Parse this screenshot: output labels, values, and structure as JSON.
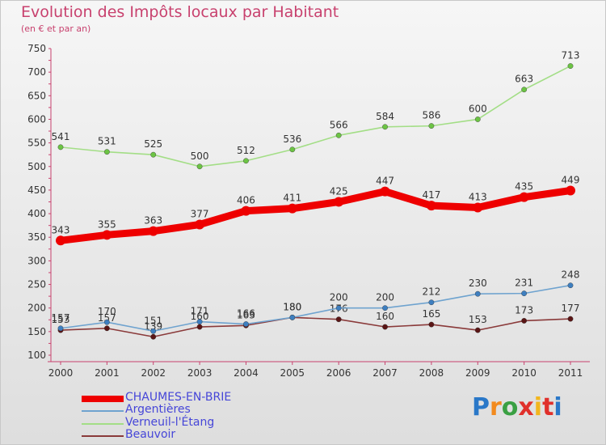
{
  "header": {
    "title": "Evolution des Impôts locaux par Habitant",
    "subtitle": "(en € et par an)"
  },
  "logo": {
    "text": "Proxiti"
  },
  "chart_data": {
    "type": "line",
    "title": "Evolution des Impôts locaux par Habitant",
    "subtitle": "(en € et par an)",
    "x": [
      2000,
      2001,
      2002,
      2003,
      2004,
      2005,
      2006,
      2007,
      2008,
      2009,
      2010,
      2011
    ],
    "ylim": [
      100,
      750
    ],
    "yticks": [
      100,
      150,
      200,
      250,
      300,
      350,
      400,
      450,
      500,
      550,
      600,
      650,
      700,
      750
    ],
    "grid": false,
    "legend_position": "bottom-left",
    "series": [
      {
        "name": "CHAUMES-EN-BRIE",
        "color": "#ee0000",
        "marker": "#ee0000",
        "emphasis": true,
        "values": [
          343,
          355,
          363,
          377,
          406,
          411,
          425,
          447,
          417,
          413,
          435,
          449
        ]
      },
      {
        "name": "Argentières",
        "color": "#6fa3cf",
        "marker": "#3e7fc0",
        "values": [
          157,
          170,
          151,
          171,
          166,
          180,
          200,
          200,
          212,
          230,
          231,
          248
        ]
      },
      {
        "name": "Verneuil-l'Étang",
        "color": "#a3de86",
        "marker": "#6cc444",
        "values": [
          541,
          531,
          525,
          500,
          512,
          536,
          566,
          584,
          586,
          600,
          663,
          713
        ]
      },
      {
        "name": "Beauvoir",
        "color": "#8a3a3a",
        "marker": "#5a1515",
        "values": [
          153,
          157,
          139,
          160,
          163,
          180,
          176,
          160,
          165,
          153,
          173,
          177
        ]
      }
    ]
  }
}
